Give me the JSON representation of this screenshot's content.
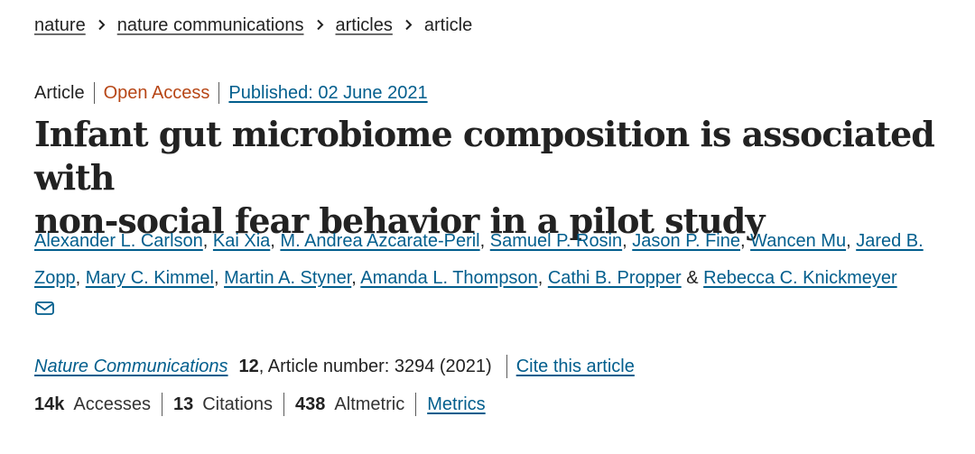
{
  "breadcrumb": {
    "items": [
      "nature",
      "nature communications",
      "articles"
    ],
    "current": "article"
  },
  "meta": {
    "type": "Article",
    "access": "Open Access",
    "published": "Published: 02 June 2021"
  },
  "title": {
    "line1": "Infant gut microbiome composition is associated with",
    "line2": "non-social fear behavior in a pilot study"
  },
  "authors": [
    "Alexander L. Carlson",
    "Kai Xia",
    "M. Andrea Azcarate-Peril",
    "Samuel P. Rosin",
    "Jason P. Fine",
    "Wancen Mu",
    "Jared B. Zopp",
    "Mary C. Kimmel",
    "Martin A. Styner",
    "Amanda L. Thompson",
    "Cathi B. Propper",
    "Rebecca C. Knickmeyer"
  ],
  "author_separator": ", ",
  "author_final_joiner": " & ",
  "journal": {
    "name": "Nature Communications",
    "volume": "12",
    "article_number": ", Article number: 3294 (2021)",
    "cite": "Cite this article"
  },
  "metrics": {
    "accesses_value": "14k",
    "accesses_label": "Accesses",
    "citations_value": "13",
    "citations_label": "Citations",
    "altmetric_value": "438",
    "altmetric_label": "Altmetric",
    "metrics_link": "Metrics"
  },
  "icons": {
    "chevron": "chevron-right-icon",
    "mail": "mail-icon"
  },
  "colors": {
    "link": "#025e8d",
    "open_access": "#b74616",
    "text": "#222222"
  }
}
